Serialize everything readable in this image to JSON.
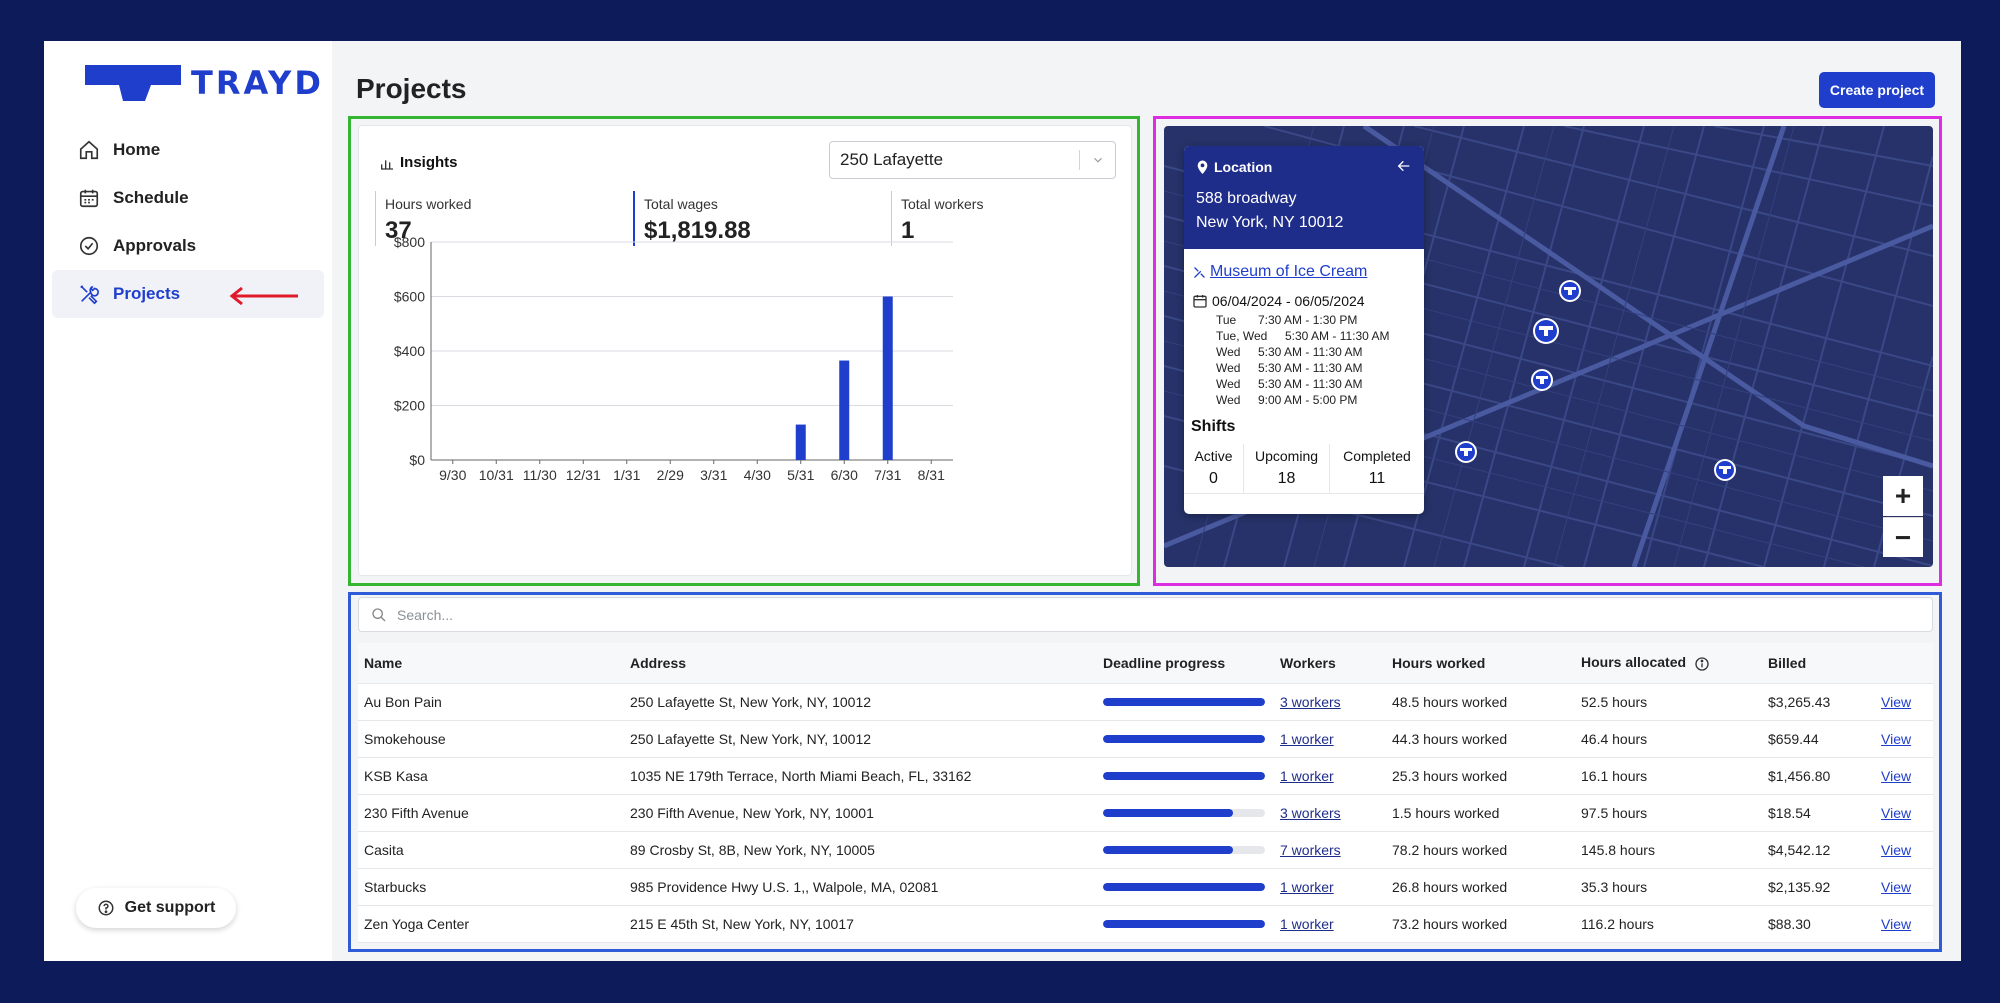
{
  "brand": {
    "name": "TRAYD",
    "color": "#1f3ecc"
  },
  "sidebar": {
    "items": [
      {
        "label": "Home",
        "icon": "home-icon"
      },
      {
        "label": "Schedule",
        "icon": "calendar-icon"
      },
      {
        "label": "Approvals",
        "icon": "check-circle-icon"
      },
      {
        "label": "Projects",
        "icon": "tools-icon",
        "active": true
      }
    ],
    "support_label": "Get support"
  },
  "header": {
    "title": "Projects",
    "create_label": "Create project"
  },
  "insights": {
    "title": "Insights",
    "selected_location": "250 Lafayette",
    "stats": [
      {
        "label": "Hours worked",
        "value": "37"
      },
      {
        "label": "Total wages",
        "value": "$1,819.88"
      },
      {
        "label": "Total workers",
        "value": "1"
      }
    ]
  },
  "chart_data": {
    "type": "bar",
    "categories": [
      "9/30",
      "10/31",
      "11/30",
      "12/31",
      "1/31",
      "2/29",
      "3/31",
      "4/30",
      "5/31",
      "6/30",
      "7/31",
      "8/31"
    ],
    "values": [
      0,
      0,
      0,
      0,
      0,
      0,
      0,
      0,
      130,
      365,
      600,
      0
    ],
    "yticks": [
      "$0",
      "$200",
      "$400",
      "$600",
      "$800"
    ],
    "ylim": [
      0,
      800
    ],
    "grid": true,
    "color": "#1f3ecc"
  },
  "map_card": {
    "title": "Location",
    "address_line1": "588 broadway",
    "address_line2": "New York, NY 10012",
    "project_link": "Museum of Ice Cream",
    "date_range": "06/04/2024 - 06/05/2024",
    "schedule": [
      {
        "day": "Tue",
        "time": "7:30 AM - 1:30 PM"
      },
      {
        "day": "Tue, Wed",
        "time": "5:30 AM - 11:30 AM"
      },
      {
        "day": "Wed",
        "time": "5:30 AM - 11:30 AM"
      },
      {
        "day": "Wed",
        "time": "5:30 AM - 11:30 AM"
      },
      {
        "day": "Wed",
        "time": "5:30 AM - 11:30 AM"
      },
      {
        "day": "Wed",
        "time": "9:00 AM - 5:00 PM"
      }
    ],
    "shifts_title": "Shifts",
    "shifts": [
      {
        "label": "Active",
        "value": "0"
      },
      {
        "label": "Upcoming",
        "value": "18"
      },
      {
        "label": "Completed",
        "value": "11"
      }
    ],
    "zoom_in": "+",
    "zoom_out": "−"
  },
  "table": {
    "search_placeholder": "Search...",
    "columns": [
      "Name",
      "Address",
      "Deadline progress",
      "Workers",
      "Hours worked",
      "Hours allocated",
      "Billed"
    ],
    "rows": [
      {
        "name": "Au Bon Pain",
        "address": "250 Lafayette St, New York, NY, 10012",
        "progress": 1.0,
        "workers": "3 workers",
        "hours_worked": "48.5 hours worked",
        "hours_allocated": "52.5 hours",
        "billed": "$3,265.43",
        "view": "View"
      },
      {
        "name": "Smokehouse",
        "address": "250 Lafayette St, New York, NY, 10012",
        "progress": 1.0,
        "workers": "1 worker",
        "hours_worked": "44.3 hours worked",
        "hours_allocated": "46.4 hours",
        "billed": "$659.44",
        "view": "View"
      },
      {
        "name": "KSB Kasa",
        "address": "1035 NE 179th Terrace, North Miami Beach, FL, 33162",
        "progress": 1.0,
        "workers": "1 worker",
        "hours_worked": "25.3 hours worked",
        "hours_allocated": "16.1 hours",
        "billed": "$1,456.80",
        "view": "View"
      },
      {
        "name": "230 Fifth Avenue",
        "address": "230 Fifth Avenue, New York, NY, 10001",
        "progress": 0.8,
        "workers": "3 workers",
        "hours_worked": "1.5 hours worked",
        "hours_allocated": "97.5 hours",
        "billed": "$18.54",
        "view": "View"
      },
      {
        "name": "Casita",
        "address": "89 Crosby St, 8B, New York, NY, 10005",
        "progress": 0.8,
        "workers": "7 workers",
        "hours_worked": "78.2 hours worked",
        "hours_allocated": "145.8 hours",
        "billed": "$4,542.12",
        "view": "View"
      },
      {
        "name": "Starbucks",
        "address": "985 Providence Hwy U.S. 1,, Walpole, MA, 02081",
        "progress": 1.0,
        "workers": "1 worker",
        "hours_worked": "26.8 hours worked",
        "hours_allocated": "35.3 hours",
        "billed": "$2,135.92",
        "view": "View"
      },
      {
        "name": "Zen Yoga Center",
        "address": "215 E 45th St, New York, NY, 10017",
        "progress": 1.0,
        "workers": "1 worker",
        "hours_worked": "73.2 hours worked",
        "hours_allocated": "116.2 hours",
        "billed": "$88.30",
        "view": "View"
      }
    ]
  }
}
